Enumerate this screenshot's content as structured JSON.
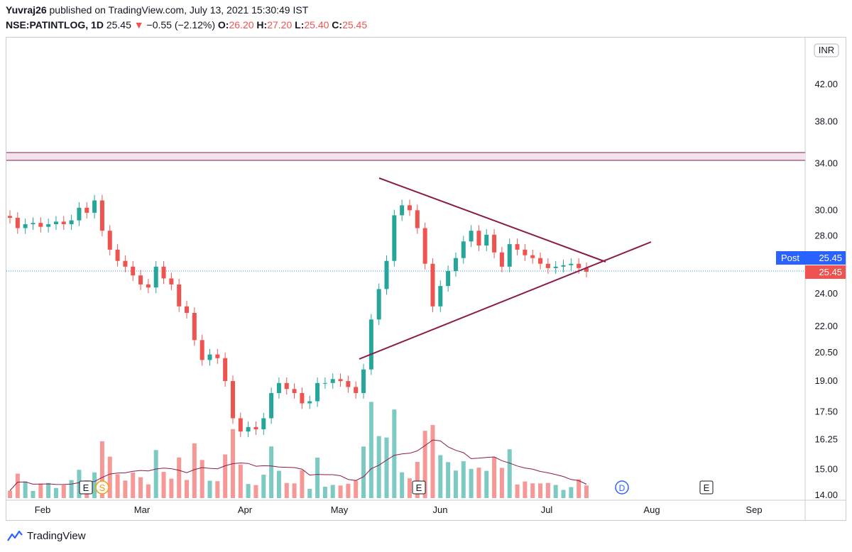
{
  "header": {
    "author": "Yuvraj26",
    "published_text": "published on TradingView.com, July 13, 2021 15:30:49 IST",
    "symbol": "NSE:PATINTLOG, 1D",
    "last": "25.45",
    "change": "−0.55 (−2.12%)",
    "o_label": "O:",
    "o_val": "26.20",
    "h_label": "H:",
    "h_val": "27.20",
    "l_label": "L:",
    "l_val": "25.40",
    "c_label": "C:",
    "c_val": "25.45"
  },
  "currency_label": "INR",
  "post_label": "Post",
  "post_value": "25.45",
  "price_tag": "25.45",
  "event_markers": {
    "earnings": "E",
    "split": "S",
    "dividend": "D"
  },
  "footer": {
    "brand": "TradingView"
  },
  "colors": {
    "up": "#26a69a",
    "down": "#ef5350",
    "trendline": "#8b1a4a",
    "zone": "#f3e3ee",
    "post": "#2962ff"
  },
  "chart_data": {
    "type": "candlestick",
    "symbol": "NSE:PATINTLOG",
    "interval": "1D",
    "y_scale": "log",
    "ylim": [
      14.0,
      46.0
    ],
    "y_ticks": [
      "42.00",
      "38.00",
      "34.00",
      "30.00",
      "28.00",
      "24.00",
      "22.00",
      "20.50",
      "19.00",
      "17.50",
      "16.25",
      "15.00",
      "14.00"
    ],
    "x_ticks": [
      "Feb",
      "Mar",
      "Apr",
      "May",
      "Jun",
      "Jul",
      "Aug",
      "Sep"
    ],
    "closes": [
      29.4,
      28.6,
      28.9,
      29.0,
      28.7,
      28.9,
      29.1,
      28.9,
      29.2,
      30.2,
      29.8,
      30.8,
      28.4,
      27.0,
      26.2,
      25.8,
      25.2,
      24.6,
      24.4,
      25.8,
      25.0,
      24.6,
      23.2,
      22.8,
      21.2,
      20.1,
      20.4,
      20.2,
      19.0,
      17.2,
      16.6,
      16.8,
      16.7,
      17.2,
      18.4,
      18.9,
      18.6,
      18.4,
      17.9,
      18.0,
      18.9,
      18.9,
      19.1,
      19.0,
      18.7,
      18.4,
      19.6,
      22.4,
      24.3,
      26.2,
      29.6,
      30.4,
      30.0,
      28.6,
      26.0,
      23.2,
      24.5,
      25.5,
      26.4,
      27.6,
      28.4,
      27.3,
      28.1,
      26.8,
      25.8,
      27.4,
      27.0,
      26.6,
      26.4,
      26.0,
      25.7,
      25.8,
      25.9,
      26.0,
      25.7,
      25.45
    ],
    "volume_series": {
      "name": "Volume",
      "note": "bars colored by candle direction; moving average line overlaid"
    },
    "horizontal_zone": [
      34.5,
      35.2
    ],
    "trendlines": [
      {
        "name": "upper",
        "from": [
          "2021-05-17",
          32.8
        ],
        "to": [
          "2021-07-16",
          25.5
        ]
      },
      {
        "name": "lower",
        "from": [
          "2021-05-10",
          20.3
        ],
        "to": [
          "2021-07-20",
          27.6
        ]
      }
    ],
    "last_price": 25.45,
    "post_price": 25.45
  }
}
